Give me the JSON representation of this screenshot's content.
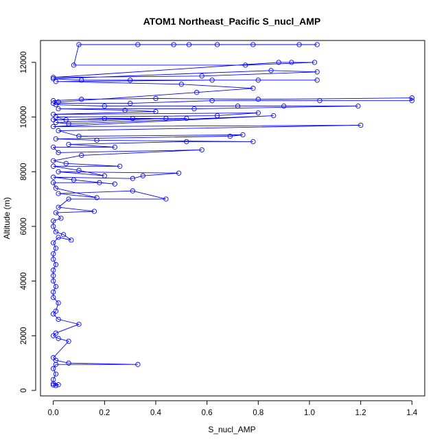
{
  "chart_data": {
    "type": "line",
    "title": "ATOM1 Northeast_Pacific S_nucl_AMP",
    "xlabel": "S_nucl_AMP",
    "ylabel": "Altitude (m)",
    "xlim": [
      -0.05,
      1.45
    ],
    "ylim": [
      -200,
      12800
    ],
    "x_ticks": [
      "0.0",
      "0.2",
      "0.4",
      "0.6",
      "0.8",
      "1.0",
      "1.2",
      "1.4"
    ],
    "y_ticks": [
      "0",
      "2000",
      "4000",
      "6000",
      "8000",
      "10000",
      "12000"
    ],
    "grid": false,
    "marker": "open-circle",
    "colors": {
      "series": "#0000ff",
      "axes": "#000000"
    },
    "series": [
      {
        "values": [
          [
            0.0,
            200
          ],
          [
            0.01,
            180
          ],
          [
            0.02,
            210
          ],
          [
            0.0,
            250
          ],
          [
            0.0,
            400
          ],
          [
            0.01,
            600
          ],
          [
            0.0,
            800
          ],
          [
            0.01,
            950
          ],
          [
            0.33,
            950
          ],
          [
            0.06,
            1000
          ],
          [
            0.01,
            1100
          ],
          [
            0.0,
            1200
          ],
          [
            0.06,
            1800
          ],
          [
            0.02,
            1900
          ],
          [
            0.0,
            2000
          ],
          [
            0.01,
            2100
          ],
          [
            0.1,
            2420
          ],
          [
            0.02,
            2600
          ],
          [
            0.0,
            2800
          ],
          [
            0.01,
            2900
          ],
          [
            0.02,
            3200
          ],
          [
            0.0,
            3400
          ],
          [
            0.0,
            3600
          ],
          [
            0.01,
            3800
          ],
          [
            0.0,
            4000
          ],
          [
            0.0,
            4200
          ],
          [
            0.0,
            4400
          ],
          [
            0.01,
            4600
          ],
          [
            0.0,
            4800
          ],
          [
            0.0,
            5000
          ],
          [
            0.01,
            5200
          ],
          [
            0.0,
            5400
          ],
          [
            0.02,
            5600
          ],
          [
            0.07,
            5500
          ],
          [
            0.04,
            5700
          ],
          [
            0.01,
            5800
          ],
          [
            0.0,
            6000
          ],
          [
            0.0,
            6200
          ],
          [
            0.03,
            6300
          ],
          [
            0.01,
            6500
          ],
          [
            0.16,
            6550
          ],
          [
            0.02,
            6700
          ],
          [
            0.06,
            7000
          ],
          [
            0.44,
            7000
          ],
          [
            0.31,
            7300
          ],
          [
            0.02,
            7200
          ],
          [
            0.17,
            7050
          ],
          [
            0.01,
            7400
          ],
          [
            0.0,
            7600
          ],
          [
            0.18,
            7600
          ],
          [
            0.24,
            7550
          ],
          [
            0.08,
            7700
          ],
          [
            0.0,
            7800
          ],
          [
            0.31,
            7750
          ],
          [
            0.35,
            7850
          ],
          [
            0.49,
            7950
          ],
          [
            0.02,
            8000
          ],
          [
            0.2,
            7850
          ],
          [
            0.1,
            8050
          ],
          [
            0.0,
            8200
          ],
          [
            0.26,
            8200
          ],
          [
            0.05,
            8300
          ],
          [
            0.0,
            8400
          ],
          [
            0.11,
            8600
          ],
          [
            0.58,
            8800
          ],
          [
            0.02,
            8700
          ],
          [
            0.0,
            8900
          ],
          [
            0.24,
            8900
          ],
          [
            0.06,
            9000
          ],
          [
            0.52,
            9100
          ],
          [
            0.78,
            9100
          ],
          [
            0.17,
            9150
          ],
          [
            0.01,
            9200
          ],
          [
            0.69,
            9300
          ],
          [
            0.74,
            9350
          ],
          [
            0.1,
            9300
          ],
          [
            0.02,
            9500
          ],
          [
            1.2,
            9700
          ],
          [
            0.0,
            9650
          ],
          [
            0.86,
            10050
          ],
          [
            0.06,
            9750
          ],
          [
            0.01,
            9800
          ],
          [
            0.44,
            9950
          ],
          [
            0.0,
            9900
          ],
          [
            0.52,
            9950
          ],
          [
            0.31,
            9950
          ],
          [
            0.2,
            9950
          ],
          [
            0.05,
            9900
          ],
          [
            0.01,
            10000
          ],
          [
            0.64,
            10050
          ],
          [
            0.8,
            10150
          ],
          [
            0.0,
            10100
          ],
          [
            0.4,
            10200
          ],
          [
            0.28,
            10250
          ],
          [
            0.02,
            10300
          ],
          [
            0.55,
            10300
          ],
          [
            1.19,
            10400
          ],
          [
            0.9,
            10400
          ],
          [
            0.72,
            10400
          ],
          [
            0.2,
            10400
          ],
          [
            0.01,
            10450
          ],
          [
            0.0,
            10500
          ],
          [
            0.3,
            10500
          ],
          [
            0.62,
            10600
          ],
          [
            1.04,
            10600
          ],
          [
            1.4,
            10600
          ],
          [
            1.4,
            10700
          ],
          [
            0.8,
            10650
          ],
          [
            0.4,
            10680
          ],
          [
            0.11,
            10650
          ],
          [
            0.0,
            10600
          ],
          [
            0.02,
            10550
          ],
          [
            0.56,
            10900
          ],
          [
            0.78,
            11050
          ],
          [
            0.5,
            11200
          ],
          [
            0.01,
            11300
          ],
          [
            0.62,
            11350
          ],
          [
            0.8,
            11350
          ],
          [
            1.03,
            11350
          ],
          [
            0.3,
            11350
          ],
          [
            0.11,
            11350
          ],
          [
            0.0,
            11400
          ],
          [
            0.85,
            11700
          ],
          [
            1.03,
            11650
          ],
          [
            0.58,
            11500
          ],
          [
            0.0,
            11450
          ],
          [
            0.88,
            12000
          ],
          [
            0.93,
            12000
          ],
          [
            1.02,
            12000
          ],
          [
            0.75,
            11900
          ],
          [
            0.08,
            11900
          ],
          [
            0.1,
            12650
          ],
          [
            0.33,
            12650
          ],
          [
            0.47,
            12650
          ],
          [
            0.53,
            12650
          ],
          [
            0.64,
            12650
          ],
          [
            0.78,
            12650
          ],
          [
            0.96,
            12650
          ],
          [
            1.03,
            12650
          ]
        ]
      }
    ]
  }
}
